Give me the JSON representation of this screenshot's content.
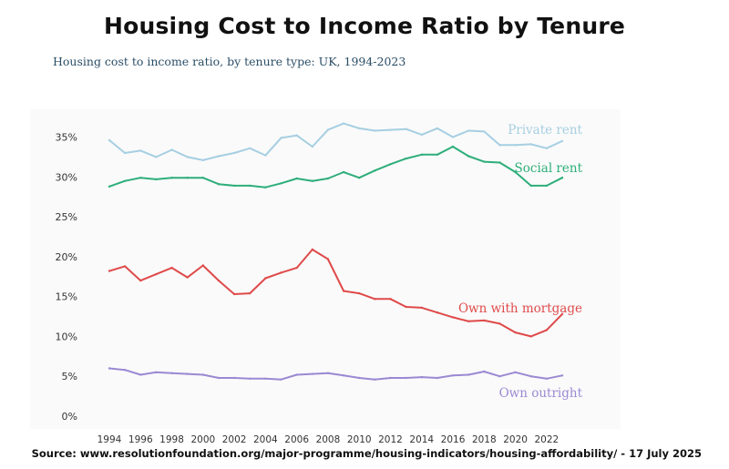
{
  "chart_data": {
    "type": "line",
    "title": "Housing Cost to Income Ratio by Tenure",
    "subtitle": "Housing cost to income ratio, by tenure type: UK, 1994-2023",
    "xlabel": "",
    "ylabel": "",
    "x": [
      1994,
      1995,
      1996,
      1997,
      1998,
      1999,
      2000,
      2001,
      2002,
      2003,
      2004,
      2005,
      2006,
      2007,
      2008,
      2009,
      2010,
      2011,
      2012,
      2013,
      2014,
      2015,
      2016,
      2017,
      2018,
      2019,
      2020,
      2021,
      2022,
      2023
    ],
    "xticks": [
      1994,
      1996,
      1998,
      2000,
      2002,
      2004,
      2006,
      2008,
      2010,
      2012,
      2014,
      2016,
      2018,
      2020,
      2022
    ],
    "yticks": [
      0,
      5,
      10,
      15,
      20,
      25,
      30,
      35
    ],
    "ytick_labels": [
      "0%",
      "5%",
      "10%",
      "15%",
      "20%",
      "25%",
      "30%",
      "35%"
    ],
    "ylim": [
      0,
      37
    ],
    "series": [
      {
        "name": "Private rent",
        "color": "#a6cfe2",
        "values": [
          34.6,
          33.0,
          33.3,
          32.5,
          33.4,
          32.5,
          32.1,
          32.6,
          33.0,
          33.6,
          32.7,
          34.9,
          35.2,
          33.8,
          35.9,
          36.7,
          36.1,
          35.8,
          35.9,
          36.0,
          35.3,
          36.1,
          35.0,
          35.8,
          35.7,
          34.0,
          34.0,
          34.1,
          33.6,
          34.5
        ]
      },
      {
        "name": "Social rent",
        "color": "#2eae7a",
        "values": [
          28.8,
          29.5,
          29.9,
          29.7,
          29.9,
          29.9,
          29.9,
          29.1,
          28.9,
          28.9,
          28.7,
          29.2,
          29.8,
          29.5,
          29.8,
          30.6,
          29.9,
          30.8,
          31.6,
          32.3,
          32.8,
          32.8,
          33.8,
          32.6,
          31.9,
          31.8,
          30.6,
          28.9,
          28.9,
          29.9
        ]
      },
      {
        "name": "Own with mortgage",
        "color": "#df4a4a",
        "values": [
          18.2,
          18.8,
          17.0,
          17.8,
          18.6,
          17.4,
          18.9,
          17.0,
          15.3,
          15.4,
          17.3,
          18.0,
          18.6,
          20.9,
          19.7,
          15.7,
          15.4,
          14.7,
          14.7,
          13.7,
          13.6,
          13.0,
          12.4,
          11.9,
          12.0,
          11.6,
          10.5,
          10.0,
          10.8,
          12.8
        ]
      },
      {
        "name": "Own outright",
        "color": "#9b89d3",
        "values": [
          6.0,
          5.8,
          5.2,
          5.5,
          5.4,
          5.3,
          5.2,
          4.8,
          4.8,
          4.7,
          4.7,
          4.6,
          5.2,
          5.3,
          5.4,
          5.1,
          4.8,
          4.6,
          4.8,
          4.8,
          4.9,
          4.8,
          5.1,
          5.2,
          5.6,
          5.0,
          5.5,
          5.0,
          4.7,
          5.1
        ]
      }
    ],
    "legend": "inline labels at right end of each line",
    "grid": false
  },
  "source": "Source: www.resolutionfoundation.org/major-programme/housing-indicators/housing-affordability/ - 17 July 2025"
}
